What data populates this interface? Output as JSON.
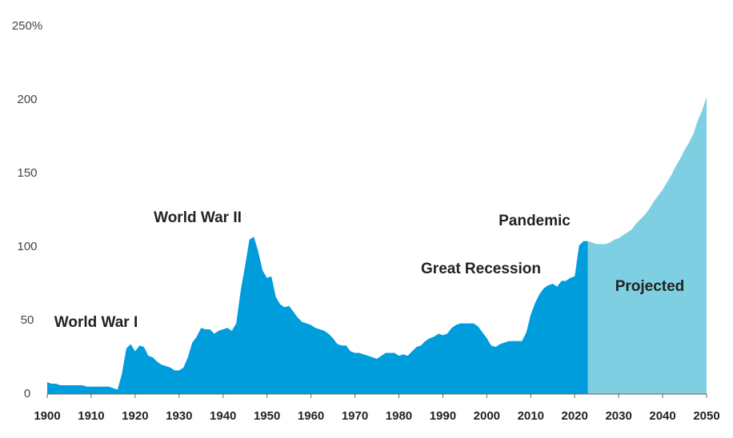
{
  "chart_data": {
    "type": "area",
    "annotations": [
      "World War I",
      "World War II",
      "Great Recession",
      "Pandemic",
      "Projected"
    ],
    "xlim": [
      1900,
      2050
    ],
    "xticks": [
      1900,
      1910,
      1920,
      1930,
      1940,
      1950,
      1960,
      1970,
      1980,
      1990,
      2000,
      2010,
      2020,
      2030,
      2040,
      2050
    ],
    "ylim": [
      0,
      250
    ],
    "yticks": [
      0,
      50,
      100,
      150,
      200,
      {
        "value": 250,
        "label": "250%"
      }
    ],
    "grid": false,
    "series": [
      {
        "color": "#009ddc",
        "x": [
          1900,
          1901,
          1902,
          1903,
          1904,
          1905,
          1906,
          1907,
          1908,
          1909,
          1910,
          1911,
          1912,
          1913,
          1914,
          1915,
          1916,
          1917,
          1918,
          1919,
          1920,
          1921,
          1922,
          1923,
          1924,
          1925,
          1926,
          1927,
          1928,
          1929,
          1930,
          1931,
          1932,
          1933,
          1934,
          1935,
          1936,
          1937,
          1938,
          1939,
          1940,
          1941,
          1942,
          1943,
          1944,
          1945,
          1946,
          1947,
          1948,
          1949,
          1950,
          1951,
          1952,
          1953,
          1954,
          1955,
          1956,
          1957,
          1958,
          1959,
          1960,
          1961,
          1962,
          1963,
          1964,
          1965,
          1966,
          1967,
          1968,
          1969,
          1970,
          1971,
          1972,
          1973,
          1974,
          1975,
          1976,
          1977,
          1978,
          1979,
          1980,
          1981,
          1982,
          1983,
          1984,
          1985,
          1986,
          1987,
          1988,
          1989,
          1990,
          1991,
          1992,
          1993,
          1994,
          1995,
          1996,
          1997,
          1998,
          1999,
          2000,
          2001,
          2002,
          2003,
          2004,
          2005,
          2006,
          2007,
          2008,
          2009,
          2010,
          2011,
          2012,
          2013,
          2014,
          2015,
          2016,
          2017,
          2018,
          2019,
          2020,
          2021,
          2022,
          2023
        ],
        "values": [
          8,
          7,
          7,
          6,
          6,
          6,
          6,
          6,
          6,
          5,
          5,
          5,
          5,
          5,
          5,
          4,
          3,
          14,
          31,
          34,
          29,
          33,
          32,
          26,
          25,
          22,
          20,
          19,
          18,
          16,
          16,
          18,
          25,
          35,
          39,
          45,
          44,
          44,
          41,
          43,
          44,
          45,
          43,
          48,
          70,
          87,
          105,
          107,
          97,
          84,
          79,
          80,
          66,
          61,
          59,
          60,
          56,
          52,
          49,
          48,
          47,
          45,
          44,
          43,
          41,
          38,
          34,
          33,
          33,
          29,
          28,
          28,
          27,
          26,
          25,
          24,
          26,
          28,
          28,
          28,
          26,
          27,
          26,
          29,
          32,
          33,
          36,
          38,
          39,
          41,
          40,
          41,
          45,
          47,
          48,
          48,
          48,
          48,
          46,
          42,
          38,
          33,
          32,
          34,
          35,
          36,
          36,
          36,
          36,
          42,
          54,
          62,
          68,
          72,
          74,
          75,
          73,
          77,
          77,
          79,
          80,
          101,
          104,
          104
        ]
      },
      {
        "color": "#7ecfe2",
        "x": [
          2023,
          2024,
          2025,
          2026,
          2027,
          2028,
          2029,
          2030,
          2031,
          2032,
          2033,
          2034,
          2035,
          2036,
          2037,
          2038,
          2039,
          2040,
          2041,
          2042,
          2043,
          2044,
          2045,
          2046,
          2047,
          2048,
          2049,
          2050
        ],
        "values": [
          104,
          103,
          102,
          102,
          102,
          103,
          105,
          106,
          108,
          110,
          112,
          116,
          119,
          122,
          126,
          131,
          135,
          139,
          144,
          149,
          155,
          160,
          166,
          171,
          177,
          186,
          193,
          202
        ]
      }
    ]
  }
}
